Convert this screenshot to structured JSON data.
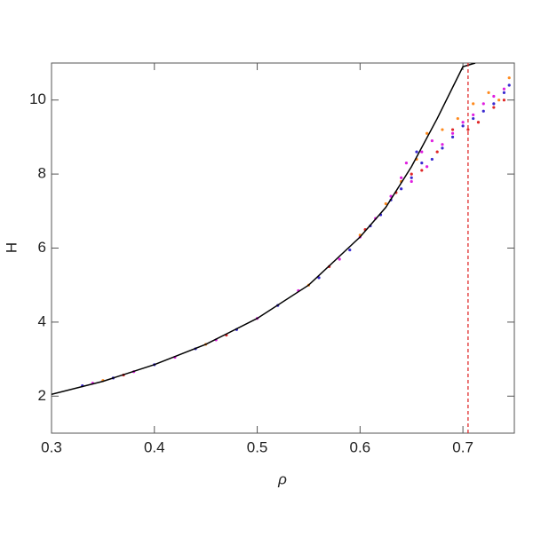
{
  "chart_data": {
    "type": "scatter",
    "xlabel": "ρ",
    "ylabel": "H",
    "xlim": [
      0.3,
      0.75
    ],
    "ylim": [
      1,
      11
    ],
    "xticks": [
      0.3,
      0.4,
      0.5,
      0.6,
      0.7
    ],
    "yticks": [
      2,
      4,
      6,
      8,
      10
    ],
    "vline": {
      "x": 0.705,
      "color": "#e02828",
      "dashed": true
    },
    "series": [
      {
        "type": "line",
        "color": "#000000",
        "x": [
          0.3,
          0.35,
          0.4,
          0.45,
          0.5,
          0.55,
          0.6,
          0.625,
          0.65,
          0.675,
          0.7,
          0.712
        ],
        "values": [
          2.05,
          2.4,
          2.85,
          3.4,
          4.1,
          5.0,
          6.3,
          7.1,
          8.2,
          9.5,
          10.9,
          11.0
        ]
      },
      {
        "type": "scatter",
        "color": "#3a2ad0",
        "x": [
          0.33,
          0.36,
          0.4,
          0.44,
          0.48,
          0.52,
          0.56,
          0.59,
          0.61,
          0.62,
          0.63,
          0.64,
          0.65,
          0.655,
          0.66,
          0.67,
          0.68,
          0.69,
          0.7,
          0.71,
          0.72,
          0.73,
          0.74,
          0.745
        ],
        "values": [
          2.28,
          2.49,
          2.85,
          3.28,
          3.8,
          4.45,
          5.2,
          5.95,
          6.6,
          6.9,
          7.3,
          7.6,
          7.9,
          8.6,
          8.3,
          8.4,
          8.7,
          9.0,
          9.3,
          9.5,
          9.7,
          9.9,
          10.2,
          10.4
        ]
      },
      {
        "type": "scatter",
        "color": "#e020e0",
        "x": [
          0.34,
          0.38,
          0.42,
          0.46,
          0.5,
          0.54,
          0.58,
          0.6,
          0.615,
          0.63,
          0.64,
          0.645,
          0.65,
          0.66,
          0.665,
          0.67,
          0.68,
          0.69,
          0.7,
          0.71,
          0.72,
          0.73,
          0.74
        ],
        "values": [
          2.35,
          2.66,
          3.05,
          3.52,
          4.1,
          4.85,
          5.7,
          6.3,
          6.8,
          7.4,
          7.9,
          8.3,
          7.8,
          8.6,
          8.2,
          8.9,
          8.8,
          9.1,
          9.4,
          9.6,
          9.9,
          10.1,
          10.3
        ]
      },
      {
        "type": "scatter",
        "color": "#ff8a1e",
        "x": [
          0.35,
          0.45,
          0.55,
          0.6,
          0.625,
          0.64,
          0.655,
          0.665,
          0.68,
          0.695,
          0.71,
          0.725,
          0.735,
          0.745
        ],
        "values": [
          2.42,
          3.4,
          5.0,
          6.35,
          7.2,
          7.8,
          8.4,
          9.1,
          9.2,
          9.5,
          9.9,
          10.2,
          10.0,
          10.6
        ]
      },
      {
        "type": "scatter",
        "color": "#e02828",
        "x": [
          0.37,
          0.47,
          0.57,
          0.605,
          0.635,
          0.65,
          0.66,
          0.675,
          0.69,
          0.705,
          0.715,
          0.73,
          0.74
        ],
        "values": [
          2.57,
          3.65,
          5.5,
          6.5,
          7.5,
          8.0,
          8.1,
          8.6,
          9.2,
          9.2,
          9.4,
          9.8,
          10.0
        ]
      }
    ]
  }
}
